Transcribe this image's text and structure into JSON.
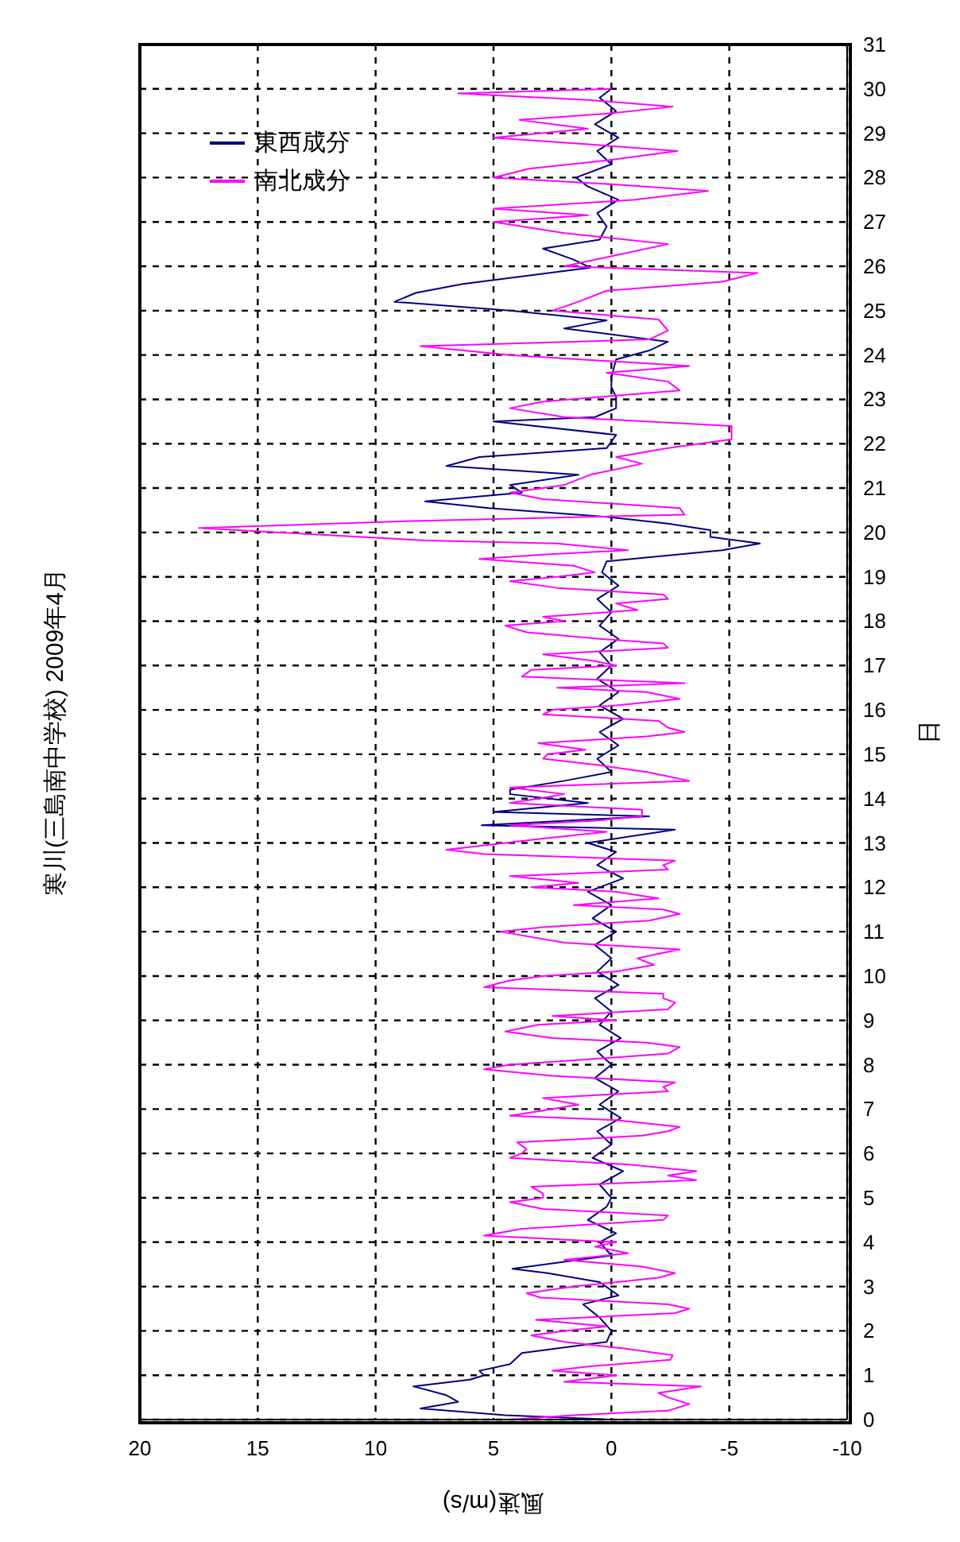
{
  "chart_data": {
    "type": "line",
    "orientation": "horizontal",
    "title": "寒川(三島南中学校) 2009年4月",
    "xlabel": "風速(m/s)",
    "ylabel": "日",
    "xlim": [
      20,
      -10
    ],
    "xticks": [
      20,
      15,
      10,
      5,
      0,
      -5,
      -10
    ],
    "ylim": [
      0,
      31
    ],
    "yticks": [
      0,
      1,
      2,
      3,
      4,
      5,
      6,
      7,
      8,
      9,
      10,
      11,
      12,
      13,
      14,
      15,
      16,
      17,
      18,
      19,
      20,
      21,
      22,
      23,
      24,
      25,
      26,
      27,
      28,
      29,
      30,
      31
    ],
    "grid": true,
    "legend": "top left",
    "series": [
      {
        "name": "東西成分",
        "color": "#000080",
        "x": [
          0,
          0.1,
          0.25,
          0.4,
          0.55,
          0.75,
          0.9,
          1,
          1.1,
          1.25,
          1.5,
          1.75,
          2,
          2.3,
          2.6,
          2.8,
          3.1,
          3.3,
          3.4,
          3.7,
          4,
          4.2,
          4.5,
          4.8,
          5,
          5.3,
          5.6,
          5.9,
          6.2,
          6.5,
          6.8,
          7.1,
          7.4,
          7.7,
          8,
          8.3,
          8.6,
          8.9,
          9.2,
          9.5,
          9.8,
          10.1,
          10.4,
          10.7,
          11,
          11.3,
          11.6,
          11.9,
          12.2,
          12.5,
          12.8,
          13,
          13.3,
          13.4,
          13.6,
          13.7,
          13.9,
          14.1,
          14.2,
          14.4,
          14.6,
          14.9,
          15.2,
          15.5,
          15.8,
          16.1,
          16.4,
          16.7,
          17,
          17.3,
          17.6,
          17.9,
          18.2,
          18.5,
          18.8,
          19.1,
          19.35,
          19.6,
          19.75,
          19.9,
          20.05,
          20.2,
          20.35,
          20.55,
          20.7,
          20.9,
          21.07,
          21.3,
          21.5,
          21.7,
          21.9,
          22.2,
          22.5,
          22.6,
          22.8,
          23.05,
          23.28,
          23.5,
          23.9,
          24.1,
          24.3,
          24.6,
          24.78,
          25,
          25.2,
          25.4,
          25.6,
          25.8,
          25.97,
          26.15,
          26.4,
          26.6,
          26.9,
          27.2,
          27.5,
          27.8,
          28,
          28.3,
          28.6,
          28.9,
          29.2,
          29.5,
          29.8,
          30
        ],
        "values": [
          0,
          4.5,
          8.1,
          6.5,
          7,
          8.4,
          6,
          5.4,
          5.6,
          4.3,
          3.8,
          0.2,
          0,
          0.5,
          1.2,
          -0.3,
          0.5,
          2.7,
          4.2,
          0,
          0.5,
          -0.2,
          1,
          0.2,
          0,
          0.5,
          -0.5,
          0.8,
          0,
          0.6,
          -0.4,
          0.5,
          -0.3,
          0.7,
          0,
          0.6,
          -0.4,
          0.5,
          0,
          0.7,
          -0.3,
          0.6,
          0,
          0.7,
          -0.2,
          0.8,
          0,
          1,
          -0.5,
          0.6,
          -0.2,
          1,
          -2.7,
          5.5,
          -1.6,
          5,
          1,
          4.3,
          4.3,
          2,
          0,
          0.6,
          -0.3,
          0.5,
          -0.5,
          0.5,
          -0.3,
          0.6,
          0,
          0.5,
          -0.3,
          0.5,
          0,
          0.6,
          -0.3,
          0.4,
          0.2,
          -4.7,
          -6.3,
          -4.2,
          -4.2,
          -2.4,
          0.2,
          5.2,
          7.9,
          3.8,
          4.3,
          1.4,
          7,
          5.6,
          0.2,
          -0.2,
          5,
          0.7,
          -0.2,
          -0.2,
          0,
          0,
          -0.2,
          -1.6,
          -2.4,
          2,
          0.2,
          4.3,
          9.2,
          8.3,
          6.3,
          3.4,
          0.9,
          1.6,
          2.9,
          0.5,
          0.2,
          0.6,
          -0.3,
          1,
          1.5,
          0,
          0.6,
          -0.3,
          0.7,
          -0.2,
          0.5,
          0
        ]
      },
      {
        "name": "南北成分",
        "color": "#ff00ff",
        "x": [
          0,
          0.1,
          0.2,
          0.35,
          0.5,
          0.6,
          0.75,
          0.85,
          1,
          1.1,
          1.2,
          1.35,
          1.45,
          1.6,
          1.75,
          1.9,
          2,
          2.1,
          2.25,
          2.4,
          2.5,
          2.6,
          2.75,
          2.85,
          3,
          3.2,
          3.3,
          3.45,
          3.6,
          3.75,
          3.9,
          4,
          4.15,
          4.3,
          4.4,
          4.5,
          4.6,
          4.75,
          4.9,
          5,
          5.1,
          5.25,
          5.4,
          5.5,
          5.6,
          5.75,
          5.9,
          6,
          6.1,
          6.25,
          6.4,
          6.5,
          6.6,
          6.75,
          6.85,
          7,
          7.1,
          7.25,
          7.4,
          7.5,
          7.6,
          7.75,
          7.9,
          8,
          8.1,
          8.25,
          8.4,
          8.5,
          8.6,
          8.75,
          8.9,
          9,
          9.1,
          9.25,
          9.4,
          9.5,
          9.6,
          9.75,
          9.9,
          10,
          10.1,
          10.25,
          10.4,
          10.5,
          10.6,
          10.75,
          11,
          11.1,
          11.25,
          11.4,
          11.5,
          11.6,
          11.75,
          11.9,
          12,
          12.1,
          12.25,
          12.4,
          12.5,
          12.6,
          12.75,
          12.85,
          13,
          13.1,
          13.25,
          13.4,
          13.5,
          13.6,
          13.75,
          13.9,
          14,
          14.1,
          14.25,
          14.4,
          14.5,
          14.6,
          14.75,
          14.9,
          15,
          15.1,
          15.25,
          15.4,
          15.5,
          15.6,
          15.75,
          15.9,
          16,
          16.1,
          16.25,
          16.4,
          16.5,
          16.6,
          16.75,
          16.9,
          17,
          17.1,
          17.25,
          17.4,
          17.5,
          17.6,
          17.75,
          17.9,
          18,
          18.1,
          18.25,
          18.4,
          18.5,
          18.6,
          18.75,
          18.9,
          19,
          19.1,
          19.25,
          19.4,
          19.5,
          19.6,
          19.75,
          19.82,
          19.96,
          20.1,
          20.25,
          20.4,
          20.55,
          20.75,
          20.9,
          21.07,
          21.3,
          21.55,
          21.7,
          21.9,
          22.1,
          22.4,
          22.6,
          22.8,
          22.95,
          23.2,
          23.4,
          23.6,
          23.75,
          24,
          24.2,
          24.35,
          24.55,
          24.8,
          25,
          25.2,
          25.45,
          25.65,
          25.85,
          26,
          26.25,
          26.5,
          26.75,
          27,
          27.15,
          27.3,
          27.5,
          27.7,
          27.85,
          28,
          28.2,
          28.4,
          28.6,
          28.75,
          28.9,
          29.1,
          29.3,
          29.45,
          29.6,
          29.75,
          29.9,
          30
        ],
        "values": [
          4.3,
          1.6,
          -2.4,
          -3.3,
          -2.4,
          -2,
          -3.8,
          2,
          -0.2,
          2.5,
          0.9,
          -2.5,
          -2.6,
          -0.6,
          2,
          3.4,
          2,
          0.2,
          3.2,
          -2.7,
          -3.3,
          -2.4,
          3,
          3.6,
          1.6,
          -2,
          -2.7,
          -1.3,
          2,
          -0.7,
          0.7,
          -0.2,
          5.4,
          3.8,
          0.9,
          -2.2,
          -2.4,
          2.9,
          4.3,
          2.9,
          2.9,
          3.4,
          -3.6,
          -2.4,
          -3.6,
          -0.7,
          4.3,
          3.8,
          3.6,
          4,
          -1.3,
          -2.4,
          -2.9,
          -0.2,
          4.3,
          2.5,
          1.4,
          2.9,
          -2.4,
          -2.2,
          -2.7,
          2.5,
          5.4,
          4.3,
          1.6,
          -2.4,
          -2.9,
          -1.5,
          2.5,
          4.5,
          3.1,
          -0.2,
          2.5,
          -2.4,
          -2.7,
          -2.2,
          -2.2,
          5.4,
          4.3,
          2.9,
          -0.2,
          -1.8,
          -1.1,
          -2,
          -2.9,
          2,
          4.7,
          2.9,
          -1.6,
          -2.9,
          -2.2,
          1.6,
          -2,
          -0.2,
          3.4,
          1.4,
          4.3,
          -2.4,
          -2.2,
          -2.7,
          5.4,
          7,
          4.5,
          2.9,
          0.2,
          4.3,
          0.7,
          -1.3,
          -1.3,
          4.3,
          3.1,
          2,
          4.3,
          -3.3,
          -2.4,
          -1.5,
          0.5,
          2.9,
          2.7,
          1.1,
          3.1,
          -1.5,
          -3.1,
          -2.4,
          -2,
          2.9,
          2.5,
          -0.2,
          -2.9,
          -1.5,
          2.3,
          -3.1,
          3.8,
          3.4,
          -0.2,
          0.7,
          2.9,
          -2.4,
          -2.2,
          0.5,
          3.6,
          4.5,
          2,
          2.9,
          -1.1,
          -0.2,
          -2.4,
          -2.2,
          2.3,
          4.3,
          2.3,
          0.7,
          1.6,
          5.6,
          2.9,
          -0.7,
          2.3,
          7.9,
          12.8,
          17.5,
          9,
          -3.1,
          -2.9,
          2.9,
          4.3,
          2,
          0.9,
          -1.3,
          -0.2,
          -2.4,
          -5.1,
          -5.1,
          2,
          4.3,
          2.9,
          -2.9,
          -2.4,
          0.2,
          -3.3,
          4.3,
          8.1,
          -1.6,
          -2.4,
          -2,
          2.5,
          1.4,
          0.2,
          -4.7,
          -6.2,
          2,
          -0.2,
          -2.4,
          2,
          5,
          1,
          5,
          -1,
          -4.1,
          0,
          5,
          3.5,
          0,
          -2.8,
          1,
          5,
          1,
          3.9,
          0,
          -2.6,
          1,
          6.5,
          0
        ]
      }
    ]
  }
}
